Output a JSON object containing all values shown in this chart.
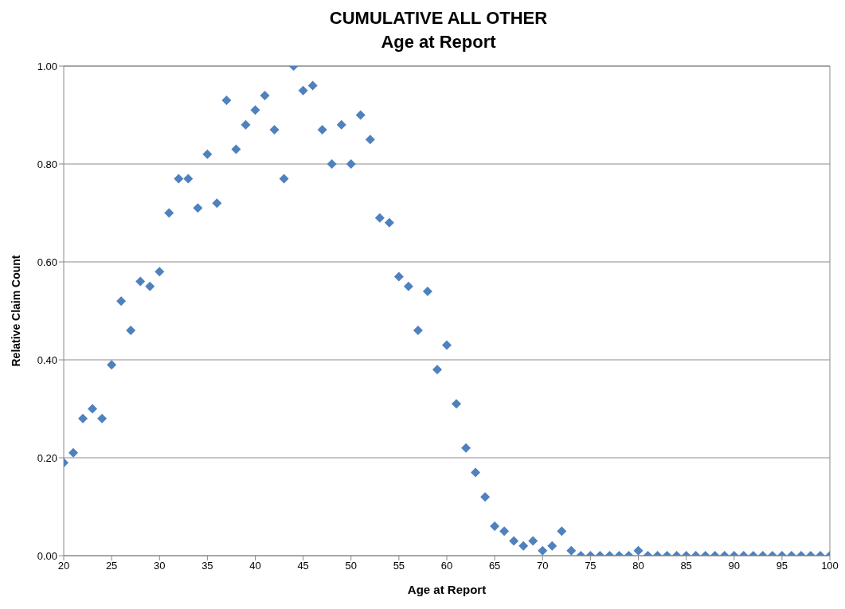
{
  "chart_data": {
    "type": "scatter",
    "title": "CUMULATIVE ALL OTHER",
    "subtitle": "Age at Report",
    "xlabel": "Age at Report",
    "ylabel": "Relative Claim Count",
    "x": [
      20,
      21,
      22,
      23,
      24,
      25,
      26,
      27,
      28,
      29,
      30,
      31,
      32,
      33,
      34,
      35,
      36,
      37,
      38,
      39,
      40,
      41,
      42,
      43,
      44,
      45,
      46,
      47,
      48,
      49,
      50,
      51,
      52,
      53,
      54,
      55,
      56,
      57,
      58,
      59,
      60,
      61,
      62,
      63,
      64,
      65,
      66,
      67,
      68,
      69,
      70,
      71,
      72,
      73,
      74,
      75,
      76,
      77,
      78,
      79,
      80,
      81,
      82,
      83,
      84,
      85,
      86,
      87,
      88,
      89,
      90,
      91,
      92,
      93,
      94,
      95,
      96,
      97,
      98,
      99,
      100
    ],
    "series": [
      {
        "color": "#4f81bd",
        "values": [
          0.19,
          0.21,
          0.28,
          0.3,
          0.28,
          0.39,
          0.52,
          0.46,
          0.56,
          0.55,
          0.58,
          0.7,
          0.77,
          0.77,
          0.71,
          0.82,
          0.72,
          0.93,
          0.83,
          0.88,
          0.91,
          0.94,
          0.87,
          0.77,
          1.0,
          0.95,
          0.96,
          0.87,
          0.8,
          0.88,
          0.8,
          0.9,
          0.85,
          0.69,
          0.68,
          0.57,
          0.55,
          0.46,
          0.54,
          0.38,
          0.43,
          0.31,
          0.22,
          0.17,
          0.12,
          0.06,
          0.05,
          0.03,
          0.02,
          0.03,
          0.01,
          0.02,
          0.05,
          0.01,
          0,
          0,
          0,
          0,
          0,
          0,
          0.01,
          0,
          0,
          0,
          0,
          0,
          0,
          0,
          0,
          0,
          0,
          0,
          0,
          0,
          0,
          0,
          0,
          0,
          0,
          0,
          0
        ]
      }
    ],
    "xlim": [
      20,
      100
    ],
    "xticks": [
      20,
      25,
      30,
      35,
      40,
      45,
      50,
      55,
      60,
      65,
      70,
      75,
      80,
      85,
      90,
      95,
      100
    ],
    "ylim": [
      0,
      1
    ],
    "yticks": [
      {
        "value": 0,
        "label": "0.00"
      },
      {
        "value": 0.2,
        "label": "0.20"
      },
      {
        "value": 0.4,
        "label": "0.40"
      },
      {
        "value": 0.6,
        "label": "0.60"
      },
      {
        "value": 0.8,
        "label": "0.80"
      },
      {
        "value": 1,
        "label": "1.00"
      }
    ],
    "grid": "y",
    "marker": "diamond"
  }
}
